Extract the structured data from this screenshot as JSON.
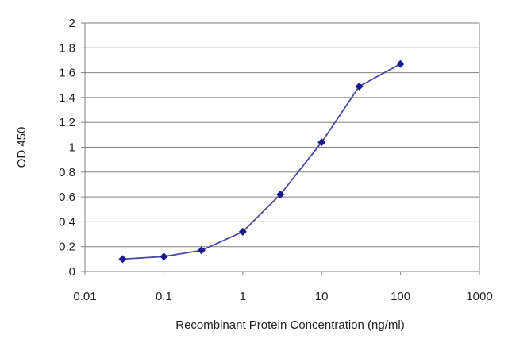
{
  "chart_data": {
    "type": "line",
    "title": "",
    "xlabel": "Recombinant Protein Concentration (ng/ml)",
    "ylabel": "OD 450",
    "x_scale": "log",
    "xlim": [
      0.01,
      1000
    ],
    "ylim": [
      0,
      2
    ],
    "x_ticks": [
      "0.01",
      "0.1",
      "1",
      "10",
      "100",
      "1000"
    ],
    "y_ticks": [
      "0",
      "0.2",
      "0.4",
      "0.6",
      "0.8",
      "1",
      "1.2",
      "1.4",
      "1.6",
      "1.8",
      "2"
    ],
    "grid": "horizontal",
    "legend": "none",
    "series": [
      {
        "x": [
          0.03,
          0.1,
          0.3,
          1,
          3,
          10,
          30,
          100
        ],
        "y": [
          0.1,
          0.12,
          0.17,
          0.32,
          0.62,
          1.04,
          1.49,
          1.67
        ],
        "color": "#2e2e9c"
      }
    ],
    "colors": {
      "plot_border": "#808080",
      "gridline": "#808080",
      "line": "#4a4aa8",
      "marker": "#1a1a8c"
    }
  }
}
